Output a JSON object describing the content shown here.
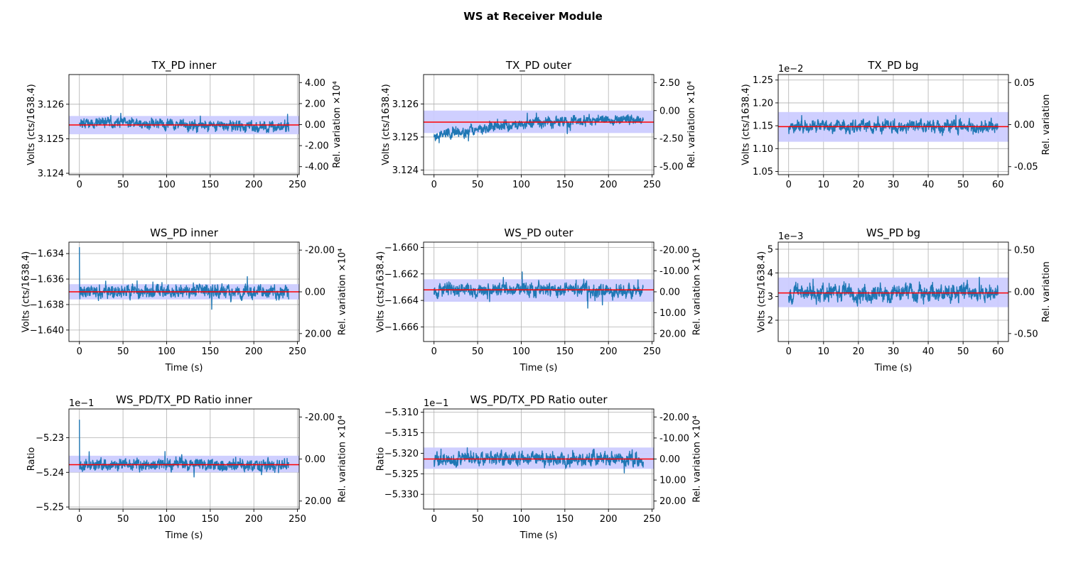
{
  "figure_title": "WS at Receiver Module",
  "colors": {
    "signal": "#1f77b4",
    "mean": "#ff0000",
    "band": "#ccccff",
    "grid": "#b0b0b0"
  },
  "chart_data": [
    {
      "type": "line",
      "title": "TX_PD inner",
      "xlabel": "",
      "ylabel": "Volts (cts/1638.4)",
      "y2label": "Rel. variation ×10⁴",
      "xlim": [
        -12,
        252
      ],
      "ylim": [
        3.12396,
        3.12686
      ],
      "xticks": [
        0,
        50,
        100,
        150,
        200,
        250
      ],
      "xtick_labels": [
        "0",
        "50",
        "100",
        "150",
        "200",
        "250"
      ],
      "yticks": [
        3.124,
        3.125,
        3.126
      ],
      "ytick_labels": [
        "3.124",
        "3.125",
        "3.126"
      ],
      "y_offset_label": "",
      "y2ticks": [
        4,
        2,
        0,
        -2,
        -4
      ],
      "y2tick_labels": [
        "4.00",
        "2.00",
        "0.00",
        "-2.00",
        "-4.00"
      ],
      "series": {
        "x_start": 0,
        "x_end": 240,
        "mean": 3.1254,
        "band": [
          3.12513,
          3.12566
        ],
        "noise": 0.00033,
        "drift": [
          0.0001,
          -0.0001
        ],
        "spike_start": 0.0,
        "seed": 11
      }
    },
    {
      "type": "line",
      "title": "TX_PD outer",
      "xlabel": "",
      "ylabel": "Volts (cts/1638.4)",
      "y2label": "Rel. variation ×10⁴",
      "xlim": [
        -12,
        252
      ],
      "ylim": [
        3.12386,
        3.12689
      ],
      "xticks": [
        0,
        50,
        100,
        150,
        200,
        250
      ],
      "xtick_labels": [
        "0",
        "50",
        "100",
        "150",
        "200",
        "250"
      ],
      "yticks": [
        3.124,
        3.125,
        3.126
      ],
      "ytick_labels": [
        "3.124",
        "3.125",
        "3.126"
      ],
      "y_offset_label": "",
      "y2ticks": [
        2.5,
        0,
        -2.5,
        -5
      ],
      "y2tick_labels": [
        "2.50",
        "0.00",
        "-2.50",
        "-5.00"
      ],
      "series": {
        "x_start": 0,
        "x_end": 240,
        "mean": 3.12545,
        "band": [
          3.12512,
          3.1258
        ],
        "noise": 0.00033,
        "drift": [
          -0.0004,
          0.0001
        ],
        "spike_start": 0.0,
        "seed": 23
      }
    },
    {
      "type": "line",
      "title": "TX_PD bg",
      "xlabel": "",
      "ylabel": "Volts (cts/1638.4)",
      "y2label": "Rel. variation",
      "xlim": [
        -3,
        63
      ],
      "ylim": [
        1.043,
        1.262
      ],
      "xticks": [
        0,
        10,
        20,
        30,
        40,
        50,
        60
      ],
      "xtick_labels": [
        "0",
        "10",
        "20",
        "30",
        "40",
        "50",
        "60"
      ],
      "yticks": [
        1.05,
        1.1,
        1.15,
        1.2,
        1.25
      ],
      "ytick_labels": [
        "1.05",
        "1.10",
        "1.15",
        "1.20",
        "1.25"
      ],
      "y_offset_label": "1e−2",
      "y2ticks": [
        0.05,
        0,
        -0.05
      ],
      "y2tick_labels": [
        "0.05",
        "0.00",
        "-0.05"
      ],
      "series": {
        "x_start": 0,
        "x_end": 60,
        "mean": 1.148,
        "band": [
          1.115,
          1.18
        ],
        "noise": 0.03,
        "drift": [
          0,
          0
        ],
        "spike_start": 0.0,
        "seed": 37
      }
    },
    {
      "type": "line",
      "title": "WS_PD inner",
      "xlabel": "Time (s)",
      "ylabel": "Volts (cts/1638.4)",
      "y2label": "Rel. variation ×10⁴",
      "xlim": [
        -12,
        252
      ],
      "ylim": [
        -1.6409,
        -1.6331
      ],
      "xticks": [
        0,
        50,
        100,
        150,
        200,
        250
      ],
      "xtick_labels": [
        "0",
        "50",
        "100",
        "150",
        "200",
        "250"
      ],
      "yticks": [
        -1.64,
        -1.638,
        -1.636,
        -1.634
      ],
      "ytick_labels": [
        "−1.640",
        "−1.638",
        "−1.636",
        "−1.634"
      ],
      "y_offset_label": "",
      "y2ticks": [
        -20,
        0,
        20
      ],
      "y2tick_labels": [
        "-20.00",
        "0.00",
        "20.00"
      ],
      "series": {
        "x_start": 0,
        "x_end": 240,
        "mean": -1.637,
        "band": [
          -1.6376,
          -1.6364
        ],
        "noise": 0.0011,
        "drift": [
          0,
          0
        ],
        "spike_start": 0.0035,
        "seed": 41
      }
    },
    {
      "type": "line",
      "title": "WS_PD outer",
      "xlabel": "Time (s)",
      "ylabel": "Volts (cts/1638.4)",
      "y2label": "Rel. variation ×10⁴",
      "xlim": [
        -12,
        252
      ],
      "ylim": [
        -1.6671,
        -1.6596
      ],
      "xticks": [
        0,
        50,
        100,
        150,
        200,
        250
      ],
      "xtick_labels": [
        "0",
        "50",
        "100",
        "150",
        "200",
        "250"
      ],
      "yticks": [
        -1.666,
        -1.664,
        -1.662,
        -1.66
      ],
      "ytick_labels": [
        "−1.666",
        "−1.664",
        "−1.662",
        "−1.660"
      ],
      "y_offset_label": "",
      "y2ticks": [
        -20,
        -10,
        0,
        10,
        20
      ],
      "y2tick_labels": [
        "-20.00",
        "-10.00",
        "0.00",
        "10.00",
        "20.00"
      ],
      "series": {
        "x_start": 0,
        "x_end": 240,
        "mean": -1.6632,
        "band": [
          -1.6641,
          -1.6624
        ],
        "noise": 0.0011,
        "drift": [
          0,
          0
        ],
        "spike_start": 0.0,
        "seed": 53
      }
    },
    {
      "type": "line",
      "title": "WS_PD bg",
      "xlabel": "Time (s)",
      "ylabel": "Volts (cts/1638.4)",
      "y2label": "Rel. variation",
      "xlim": [
        -3,
        63
      ],
      "ylim": [
        1.1,
        5.3
      ],
      "xticks": [
        0,
        10,
        20,
        30,
        40,
        50,
        60
      ],
      "xtick_labels": [
        "0",
        "10",
        "20",
        "30",
        "40",
        "50",
        "60"
      ],
      "yticks": [
        2,
        3,
        4,
        5
      ],
      "ytick_labels": [
        "2",
        "3",
        "4",
        "5"
      ],
      "y_offset_label": "1e−3",
      "y2ticks": [
        0.5,
        0,
        -0.5
      ],
      "y2tick_labels": [
        "0.50",
        "0.00",
        "-0.50"
      ],
      "series": {
        "x_start": 0,
        "x_end": 60,
        "mean": 3.15,
        "band": [
          2.55,
          3.8
        ],
        "noise": 0.75,
        "drift": [
          0,
          0
        ],
        "spike_start": 0.0,
        "seed": 67
      }
    },
    {
      "type": "line",
      "title": "WS_PD/TX_PD Ratio inner",
      "xlabel": "Time (s)",
      "ylabel": "Ratio",
      "y2label": "Rel. variation ×10⁴",
      "xlim": [
        -12,
        252
      ],
      "ylim": [
        -5.2506,
        -5.2217
      ],
      "xticks": [
        0,
        50,
        100,
        150,
        200,
        250
      ],
      "xtick_labels": [
        "0",
        "50",
        "100",
        "150",
        "200",
        "250"
      ],
      "yticks": [
        -5.25,
        -5.24,
        -5.23
      ],
      "ytick_labels": [
        "−5.25",
        "−5.24",
        "−5.23"
      ],
      "y_offset_label": "1e−1",
      "y2ticks": [
        -20,
        0,
        20
      ],
      "y2tick_labels": [
        "-20.00",
        "0.00",
        "20.00"
      ],
      "series": {
        "x_start": 0,
        "x_end": 240,
        "mean": -5.2378,
        "band": [
          -5.24,
          -5.2352
        ],
        "noise": 0.0038,
        "drift": [
          0,
          0
        ],
        "spike_start": 0.013,
        "seed": 79
      }
    },
    {
      "type": "line",
      "title": "WS_PD/TX_PD Ratio outer",
      "xlabel": "Time (s)",
      "ylabel": "Ratio",
      "y2label": "Rel. variation ×10⁴",
      "xlim": [
        -12,
        252
      ],
      "ylim": [
        -5.3336,
        -5.3092
      ],
      "xticks": [
        0,
        50,
        100,
        150,
        200,
        250
      ],
      "xtick_labels": [
        "0",
        "50",
        "100",
        "150",
        "200",
        "250"
      ],
      "yticks": [
        -5.33,
        -5.325,
        -5.32,
        -5.315,
        -5.31
      ],
      "ytick_labels": [
        "−5.330",
        "−5.325",
        "−5.320",
        "−5.315",
        "−5.310"
      ],
      "y_offset_label": "1e−1",
      "y2ticks": [
        -20,
        -10,
        0,
        10,
        20
      ],
      "y2tick_labels": [
        "-20.00",
        "-10.00",
        "0.00",
        "10.00",
        "20.00"
      ],
      "series": {
        "x_start": 0,
        "x_end": 240,
        "mean": -5.3214,
        "band": [
          -5.3238,
          -5.3186
        ],
        "noise": 0.0036,
        "drift": [
          0,
          0
        ],
        "spike_start": 0.0,
        "seed": 91
      }
    }
  ]
}
